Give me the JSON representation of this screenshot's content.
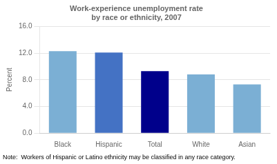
{
  "chart_data": {
    "type": "bar",
    "title": "Work-experience unemployment rate\nby race or ethnicity, 2007",
    "ylabel": "Percent",
    "categories": [
      "Black",
      "Hispanic",
      "Total",
      "White",
      "Asian"
    ],
    "values": [
      12.3,
      12.1,
      9.3,
      8.8,
      7.3
    ],
    "colors": [
      "#7bafd4",
      "#4472c4",
      "#00008b",
      "#7bafd4",
      "#7bafd4"
    ],
    "ylim": [
      0,
      16
    ],
    "yticks": [
      {
        "value": 0,
        "label": "0.0"
      },
      {
        "value": 4,
        "label": "4.0"
      },
      {
        "value": 8,
        "label": "8.0"
      },
      {
        "value": 12,
        "label": "12.0"
      },
      {
        "value": 16,
        "label": "16.0"
      }
    ],
    "grid": true,
    "note": "Note:  Workers of Hispanic or Latino ethnicity may be classified in any race category."
  }
}
